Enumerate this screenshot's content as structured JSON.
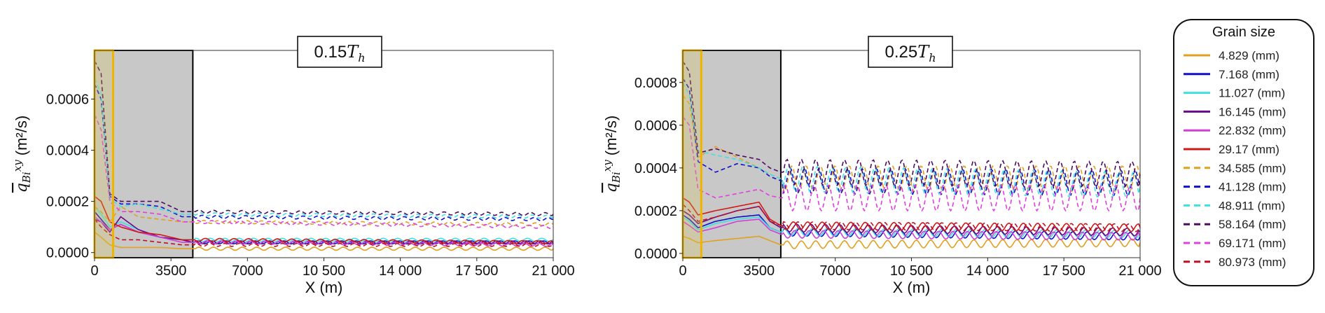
{
  "legend": {
    "title": "Grain size",
    "entries": [
      {
        "label": "4.829 (mm)",
        "color": "#E0A020",
        "dash": false
      },
      {
        "label": "7.168 (mm)",
        "color": "#1010C8",
        "dash": false
      },
      {
        "label": "11.027 (mm)",
        "color": "#40E0E0",
        "dash": false
      },
      {
        "label": "16.145 (mm)",
        "color": "#6A0A8A",
        "dash": false
      },
      {
        "label": "22.832 (mm)",
        "color": "#D040D8",
        "dash": false
      },
      {
        "label": "29.17 (mm)",
        "color": "#D01818",
        "dash": false
      },
      {
        "label": "34.585 (mm)",
        "color": "#E0A020",
        "dash": true
      },
      {
        "label": "41.128 (mm)",
        "color": "#1010C8",
        "dash": true
      },
      {
        "label": "48.911 (mm)",
        "color": "#40E0E0",
        "dash": true
      },
      {
        "label": "58.164 (mm)",
        "color": "#500A60",
        "dash": true
      },
      {
        "label": "69.171 (mm)",
        "color": "#E040E0",
        "dash": true
      },
      {
        "label": "80.973 (mm)",
        "color": "#C01020",
        "dash": true
      }
    ]
  },
  "chart_data": [
    {
      "type": "line",
      "title_main": "0.15",
      "title_sub": "h",
      "title_var": "T",
      "xlabel": "X (m)",
      "ylabel_var": "q",
      "ylabel_sub": "Bi",
      "ylabel_sup": "xy",
      "ylabel_unit": "(m²/s)",
      "xlim": [
        0,
        21000
      ],
      "ylim": [
        -2e-05,
        0.00079
      ],
      "xticks": [
        0,
        3500,
        7000,
        10500,
        14000,
        17500,
        21000
      ],
      "xtick_labels": [
        "0",
        "3500",
        "7000",
        "10 500",
        "14 000",
        "17 500",
        "21 000"
      ],
      "yticks": [
        0,
        0.0002,
        0.0004,
        0.0006
      ],
      "ytick_labels": [
        "0.0000",
        "0.0002",
        "0.0004",
        "0.0006"
      ],
      "shaded_region_x": [
        0,
        4500
      ],
      "highlight_region_x": [
        0,
        850
      ],
      "series": [
        {
          "x": [
            0,
            300,
            700,
            1200,
            2000,
            3000,
            4000,
            4500,
            21000
          ],
          "y": [
            8e-05,
            6e-05,
            3e-05,
            2e-05,
            2e-05,
            2e-05,
            1.5e-05,
            1.5e-05,
            1.5e-05
          ]
        },
        {
          "x": [
            0,
            300,
            700,
            1200,
            2000,
            3000,
            4000,
            4500,
            21000
          ],
          "y": [
            0.00016,
            0.00013,
            9e-05,
            0.00011,
            8e-05,
            6e-05,
            5e-05,
            4e-05,
            4e-05
          ]
        },
        {
          "x": [
            0,
            300,
            700,
            1200,
            2000,
            3000,
            4000,
            4500,
            21000
          ],
          "y": [
            0.00018,
            0.00015,
            0.0001,
            0.00012,
            9e-05,
            6e-05,
            5e-05,
            5e-05,
            5e-05
          ]
        },
        {
          "x": [
            0,
            300,
            700,
            1200,
            2000,
            3000,
            4000,
            4500,
            21000
          ],
          "y": [
            0.00013,
            0.00012,
            8e-05,
            0.00014,
            9e-05,
            6e-05,
            5e-05,
            4e-05,
            4e-05
          ]
        },
        {
          "x": [
            0,
            300,
            700,
            1200,
            2000,
            3000,
            4000,
            4500,
            21000
          ],
          "y": [
            0.00014,
            0.00012,
            9e-05,
            0.00011,
            8e-05,
            6e-05,
            4e-05,
            4e-05,
            3e-05
          ]
        },
        {
          "x": [
            0,
            300,
            700,
            1200,
            2000,
            3000,
            4000,
            4500,
            21000
          ],
          "y": [
            0.00022,
            0.0002,
            0.00012,
            0.0001,
            8e-05,
            7e-05,
            5e-05,
            5e-05,
            4e-05
          ]
        },
        {
          "x": [
            0,
            300,
            700,
            1200,
            2000,
            3000,
            4000,
            4500,
            21000
          ],
          "y": [
            0.00018,
            0.00016,
            0.00012,
            0.00018,
            0.00014,
            0.00013,
            0.00012,
            0.00012,
            0.00011
          ]
        },
        {
          "x": [
            0,
            300,
            700,
            1200,
            2000,
            3000,
            4000,
            4500,
            21000
          ],
          "y": [
            0.00066,
            0.0006,
            0.00022,
            0.00019,
            0.00019,
            0.00018,
            0.00014,
            0.00014,
            0.00013
          ]
        },
        {
          "x": [
            0,
            300,
            700,
            1200,
            2000,
            3000,
            4000,
            4500,
            21000
          ],
          "y": [
            0.00068,
            0.00062,
            0.00021,
            0.00018,
            0.00019,
            0.00017,
            0.00015,
            0.00015,
            0.00014
          ]
        },
        {
          "x": [
            0,
            300,
            700,
            1200,
            2000,
            3000,
            4000,
            4500,
            21000
          ],
          "y": [
            0.00075,
            0.0007,
            0.00023,
            0.0002,
            0.0002,
            0.0002,
            0.00016,
            0.00016,
            0.00015
          ]
        },
        {
          "x": [
            0,
            300,
            700,
            1200,
            2000,
            3000,
            4000,
            4500,
            21000
          ],
          "y": [
            0.00054,
            0.00048,
            0.0002,
            0.00016,
            0.00016,
            0.00015,
            0.00012,
            0.00012,
            0.0001
          ]
        },
        {
          "x": [
            0,
            300,
            700,
            1200,
            2000,
            3000,
            4000,
            4500,
            21000
          ],
          "y": [
            0.00013,
            0.0001,
            7e-05,
            5e-05,
            5e-05,
            4e-05,
            3e-05,
            3e-05,
            3e-05
          ]
        }
      ]
    },
    {
      "type": "line",
      "title_main": "0.25",
      "title_sub": "h",
      "title_var": "T",
      "xlabel": "X (m)",
      "ylabel_var": "q",
      "ylabel_sub": "Bi",
      "ylabel_sup": "xy",
      "ylabel_unit": "(m²/s)",
      "xlim": [
        0,
        21000
      ],
      "ylim": [
        -2e-05,
        0.00095
      ],
      "xticks": [
        0,
        3500,
        7000,
        10500,
        14000,
        17500,
        21000
      ],
      "xtick_labels": [
        "0",
        "3500",
        "7000",
        "10 500",
        "14 000",
        "17 500",
        "21 000"
      ],
      "yticks": [
        0,
        0.0002,
        0.0004,
        0.0006,
        0.0008
      ],
      "ytick_labels": [
        "0.0000",
        "0.0002",
        "0.0004",
        "0.0006",
        "0.0008"
      ],
      "shaded_region_x": [
        0,
        4500
      ],
      "highlight_region_x": [
        0,
        850
      ],
      "series": [
        {
          "x": [
            0,
            300,
            700,
            1500,
            2500,
            3500,
            4000,
            4500,
            21000
          ],
          "y": [
            8e-05,
            7e-05,
            5e-05,
            6e-05,
            7e-05,
            8e-05,
            6e-05,
            4e-05,
            5e-05
          ]
        },
        {
          "x": [
            0,
            300,
            700,
            1500,
            2500,
            3500,
            4000,
            4500,
            21000
          ],
          "y": [
            0.00018,
            0.00016,
            0.00012,
            0.00015,
            0.00017,
            0.00018,
            0.00012,
            0.0001,
            8e-05
          ]
        },
        {
          "x": [
            0,
            300,
            700,
            1500,
            2500,
            3500,
            4000,
            4500,
            21000
          ],
          "y": [
            0.00017,
            0.00015,
            0.00011,
            0.00014,
            0.00016,
            0.00017,
            0.00012,
            0.0001,
            9e-05
          ]
        },
        {
          "x": [
            0,
            300,
            700,
            1500,
            2500,
            3500,
            4000,
            4500,
            21000
          ],
          "y": [
            0.0002,
            0.00018,
            0.00014,
            0.00017,
            0.0002,
            0.00022,
            0.00015,
            0.00012,
            0.0001
          ]
        },
        {
          "x": [
            0,
            300,
            700,
            1500,
            2500,
            3500,
            4000,
            4500,
            21000
          ],
          "y": [
            0.00015,
            0.00013,
            0.0001,
            0.00012,
            0.00015,
            0.00016,
            0.00011,
            9e-05,
            8e-05
          ]
        },
        {
          "x": [
            0,
            300,
            700,
            1500,
            2500,
            3500,
            4000,
            4500,
            21000
          ],
          "y": [
            0.00026,
            0.00024,
            0.00018,
            0.0002,
            0.00022,
            0.00024,
            0.00016,
            0.00013,
            0.00012
          ]
        },
        {
          "x": [
            0,
            300,
            700,
            1500,
            2500,
            3500,
            4000,
            4500,
            21000
          ],
          "y": [
            0.00074,
            0.0007,
            0.00045,
            0.0005,
            0.00045,
            0.0004,
            0.00037,
            0.00035,
            0.00035
          ]
        },
        {
          "x": [
            0,
            300,
            700,
            1500,
            2500,
            3500,
            4000,
            4500,
            21000
          ],
          "y": [
            0.00082,
            0.00077,
            0.00043,
            0.00038,
            0.00042,
            0.0004,
            0.00036,
            0.00034,
            0.00033
          ]
        },
        {
          "x": [
            0,
            300,
            700,
            1500,
            2500,
            3500,
            4000,
            4500,
            21000
          ],
          "y": [
            0.0008,
            0.00074,
            0.00048,
            0.00046,
            0.00044,
            0.0004,
            0.00037,
            0.00035,
            0.00032
          ]
        },
        {
          "x": [
            0,
            300,
            700,
            1500,
            2500,
            3500,
            4000,
            4500,
            21000
          ],
          "y": [
            0.0009,
            0.00085,
            0.00047,
            0.00049,
            0.00046,
            0.00044,
            0.0004,
            0.00038,
            0.00037
          ]
        },
        {
          "x": [
            0,
            300,
            700,
            1500,
            2500,
            3500,
            4000,
            4500,
            21000
          ],
          "y": [
            0.00064,
            0.0006,
            0.0003,
            0.00026,
            0.00028,
            0.0003,
            0.00027,
            0.00026,
            0.00026
          ]
        },
        {
          "x": [
            0,
            300,
            700,
            1500,
            2500,
            3500,
            4000,
            4500,
            21000
          ],
          "y": [
            0.00023,
            0.0002,
            0.00015,
            0.00017,
            0.0002,
            0.00022,
            0.00015,
            0.00013,
            0.00012
          ]
        }
      ]
    }
  ]
}
